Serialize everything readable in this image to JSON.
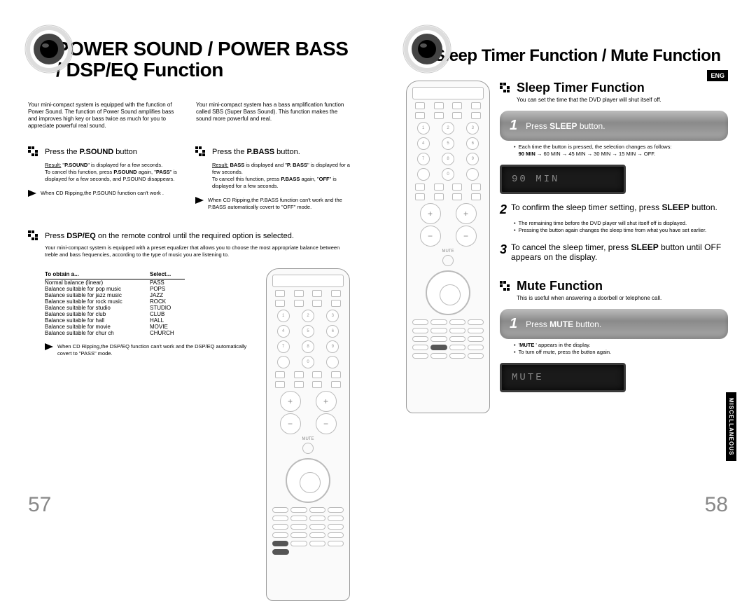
{
  "left": {
    "title": "POWER SOUND / POWER BASS / DSP/EQ  Function",
    "intro1": "Your mini-compact system is equipped with the function of Power Sound.\nThe function of Power Sound amplifies bass and improves high key or bass twice as much for you to appreciate powerful real sound.",
    "intro2": "Your mini-compact system has a bass amplification function called SBS (Super Bass Sound). This function makes the sound more powerful and real.",
    "step_psound_pre": "Press the ",
    "step_psound_bold": "P.SOUND",
    "step_psound_post": " button",
    "step_pbass_pre": "Press the ",
    "step_pbass_bold": "P.BASS",
    "step_pbass_post": " button.",
    "result1": "Result: \"P.SOUND\" is displayed for a few seconds.\nTo cancel this function, press P.SOUND again, \"PASS\" is displayed  for a few seconds, and P.SOUND disappears.",
    "result2": "Result: BASS  is displayed and \"P. BASS\" is displayed  for a few seconds.\nTo cancel this function, press P.BASS again, \"OFF\" is displayed  for a few seconds.",
    "note1": "When CD Ripping,the P.SOUND function can't work .",
    "note2": "When CD Ripping,the P.BASS function can't work and the P.BASS automatically covert to \"OFF\" mode.",
    "dsp_step_pre": "Press ",
    "dsp_step_bold": "DSP/EQ",
    "dsp_step_post": " on the remote control until the required option is selected.",
    "dsp_intro": "Your mini-compact system is equipped with a preset equalizer that allows you to choose the most appropriate balance between treble and bass frequencies, according to the type of music you are listening to.",
    "eq_headers": {
      "c1": "To obtain a...",
      "c2": "Select..."
    },
    "eq_rows": [
      {
        "c1": "Normal balance (linear)",
        "c2": "PASS"
      },
      {
        "c1": "Balance suitable for pop music",
        "c2": "POPS"
      },
      {
        "c1": "Balance suitable for jazz  music",
        "c2": "JAZZ"
      },
      {
        "c1": "Balance suitable for rock music",
        "c2": "ROCK"
      },
      {
        "c1": "Balance suitable for studio",
        "c2": "STUDIO"
      },
      {
        "c1": "Balance suitable for club",
        "c2": "CLUB"
      },
      {
        "c1": "Balance suitable for hall",
        "c2": "HALL"
      },
      {
        "c1": "Balance suitable for movie",
        "c2": "MOVIE"
      },
      {
        "c1": "Balance suitable for chur ch",
        "c2": "CHURCH"
      }
    ],
    "dsp_note": "When CD Ripping,the DSP/EQ function can't work and the DSP/EQ automatically covert to \"PASS\" mode.",
    "page_num": "57"
  },
  "right": {
    "title": "Sleep Timer Function / Mute Function",
    "eng": "ENG",
    "side_tab": "MISCELLANEOUS",
    "sleep_heading": "Sleep Timer Function",
    "sleep_sub": "You can set the time that the DVD player will shut itself off.",
    "sleep_step1_no": "1",
    "sleep_step1_pre": "Press ",
    "sleep_step1_bold": "SLEEP",
    "sleep_step1_post": " button.",
    "sleep_bullet": "Each time the button is pressed, the selection changes as follows:\n90 MIN → 60 MIN → 45 MIN → 30 MIN → 15 MIN → OFF.",
    "display1": "90 MIN",
    "sleep_step2_no": "2",
    "sleep_step2_pre": "To confirm the sleep timer setting, press ",
    "sleep_step2_bold": "SLEEP",
    "sleep_step2_post": " button.",
    "sleep_bullet2a": "The remaining time before the DVD player will shut itself off is displayed.",
    "sleep_bullet2b": "Pressing the button again changes the sleep time from what you have set earlier.",
    "sleep_step3_no": "3",
    "sleep_step3_pre": "To cancel the sleep timer, press ",
    "sleep_step3_bold": "SLEEP",
    "sleep_step3_post": " button until OFF appears on the display.",
    "mute_heading": "Mute Function",
    "mute_sub": "This is useful when answering a doorbell or telephone call.",
    "mute_step_no": "1",
    "mute_step_pre": "Press ",
    "mute_step_bold": "MUTE",
    "mute_step_post": " button.",
    "mute_b1": "' MUTE ' appears in the display.",
    "mute_b2": "To turn off mute, press the button again.",
    "display2": "MUTE",
    "page_num": "58"
  },
  "colors": {
    "panel_grad_top": "#bdbdbd",
    "panel_grad_mid": "#8a8a8a",
    "display_bg": "#1a1a1a"
  }
}
